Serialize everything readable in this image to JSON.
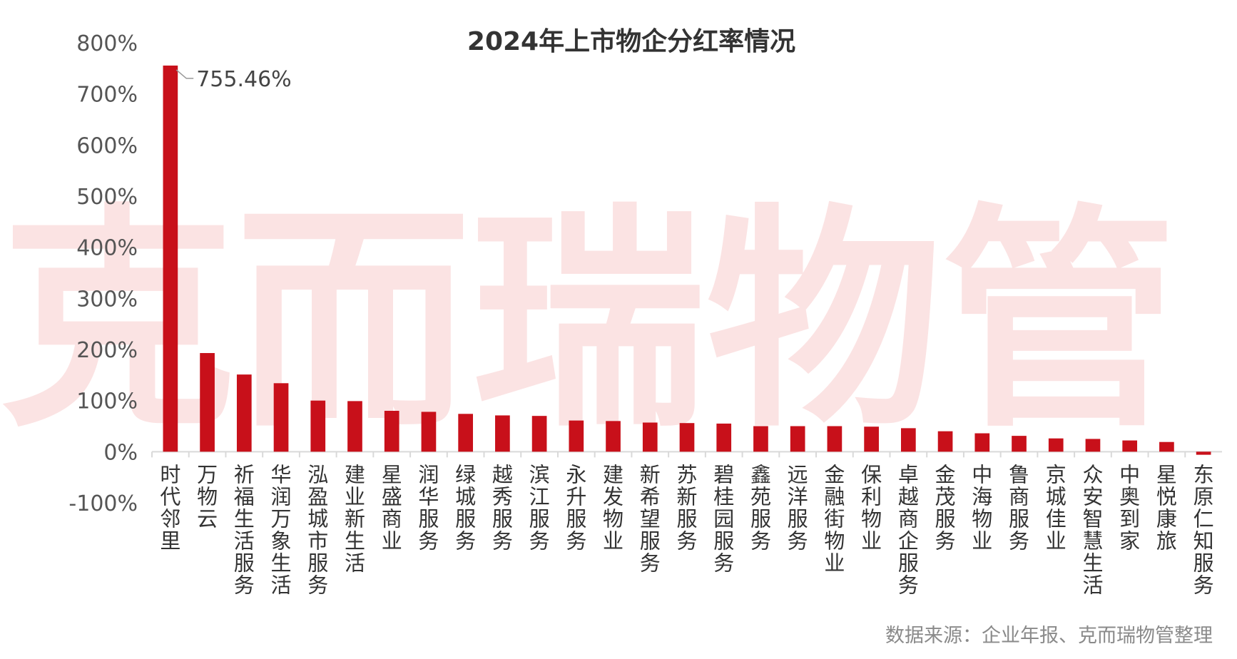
{
  "chart_data": {
    "type": "bar",
    "title": "2024年上市物企分红率情况",
    "source_note": "数据来源：企业年报、克而瑞物管整理",
    "watermark": "克而瑞物管",
    "ylim": [
      -100,
      800
    ],
    "yticks": [
      "800%",
      "700%",
      "600%",
      "500%",
      "400%",
      "300%",
      "200%",
      "100%",
      "0%",
      "-100%"
    ],
    "ytick_values": [
      800,
      700,
      600,
      500,
      400,
      300,
      200,
      100,
      0,
      -100
    ],
    "grid": false,
    "bar_color": "#c8101a",
    "categories": [
      "时代邻里",
      "万物云",
      "祈福生活服务",
      "华润万象生活",
      "泓盈城市服务",
      "建业新生活",
      "星盛商业",
      "润华服务",
      "绿城服务",
      "越秀服务",
      "滨江服务",
      "永升服务",
      "建发物业",
      "新希望服务",
      "苏新服务",
      "碧桂园服务",
      "鑫苑服务",
      "远洋服务",
      "金融街物业",
      "保利物业",
      "卓越商企服务",
      "金茂服务",
      "中海物业",
      "鲁商服务",
      "京城佳业",
      "众安智慧生活",
      "中奥到家",
      "星悦康旅",
      "东原仁知服务"
    ],
    "values": [
      755.46,
      193,
      151,
      134,
      100,
      99,
      80,
      78,
      74,
      71,
      70,
      61,
      60,
      57,
      56,
      55,
      50,
      50,
      50,
      49,
      46,
      40,
      36,
      31,
      26,
      25,
      22,
      19,
      -6
    ],
    "data_labels": [
      {
        "index": 0,
        "text": "755.46%"
      }
    ]
  }
}
